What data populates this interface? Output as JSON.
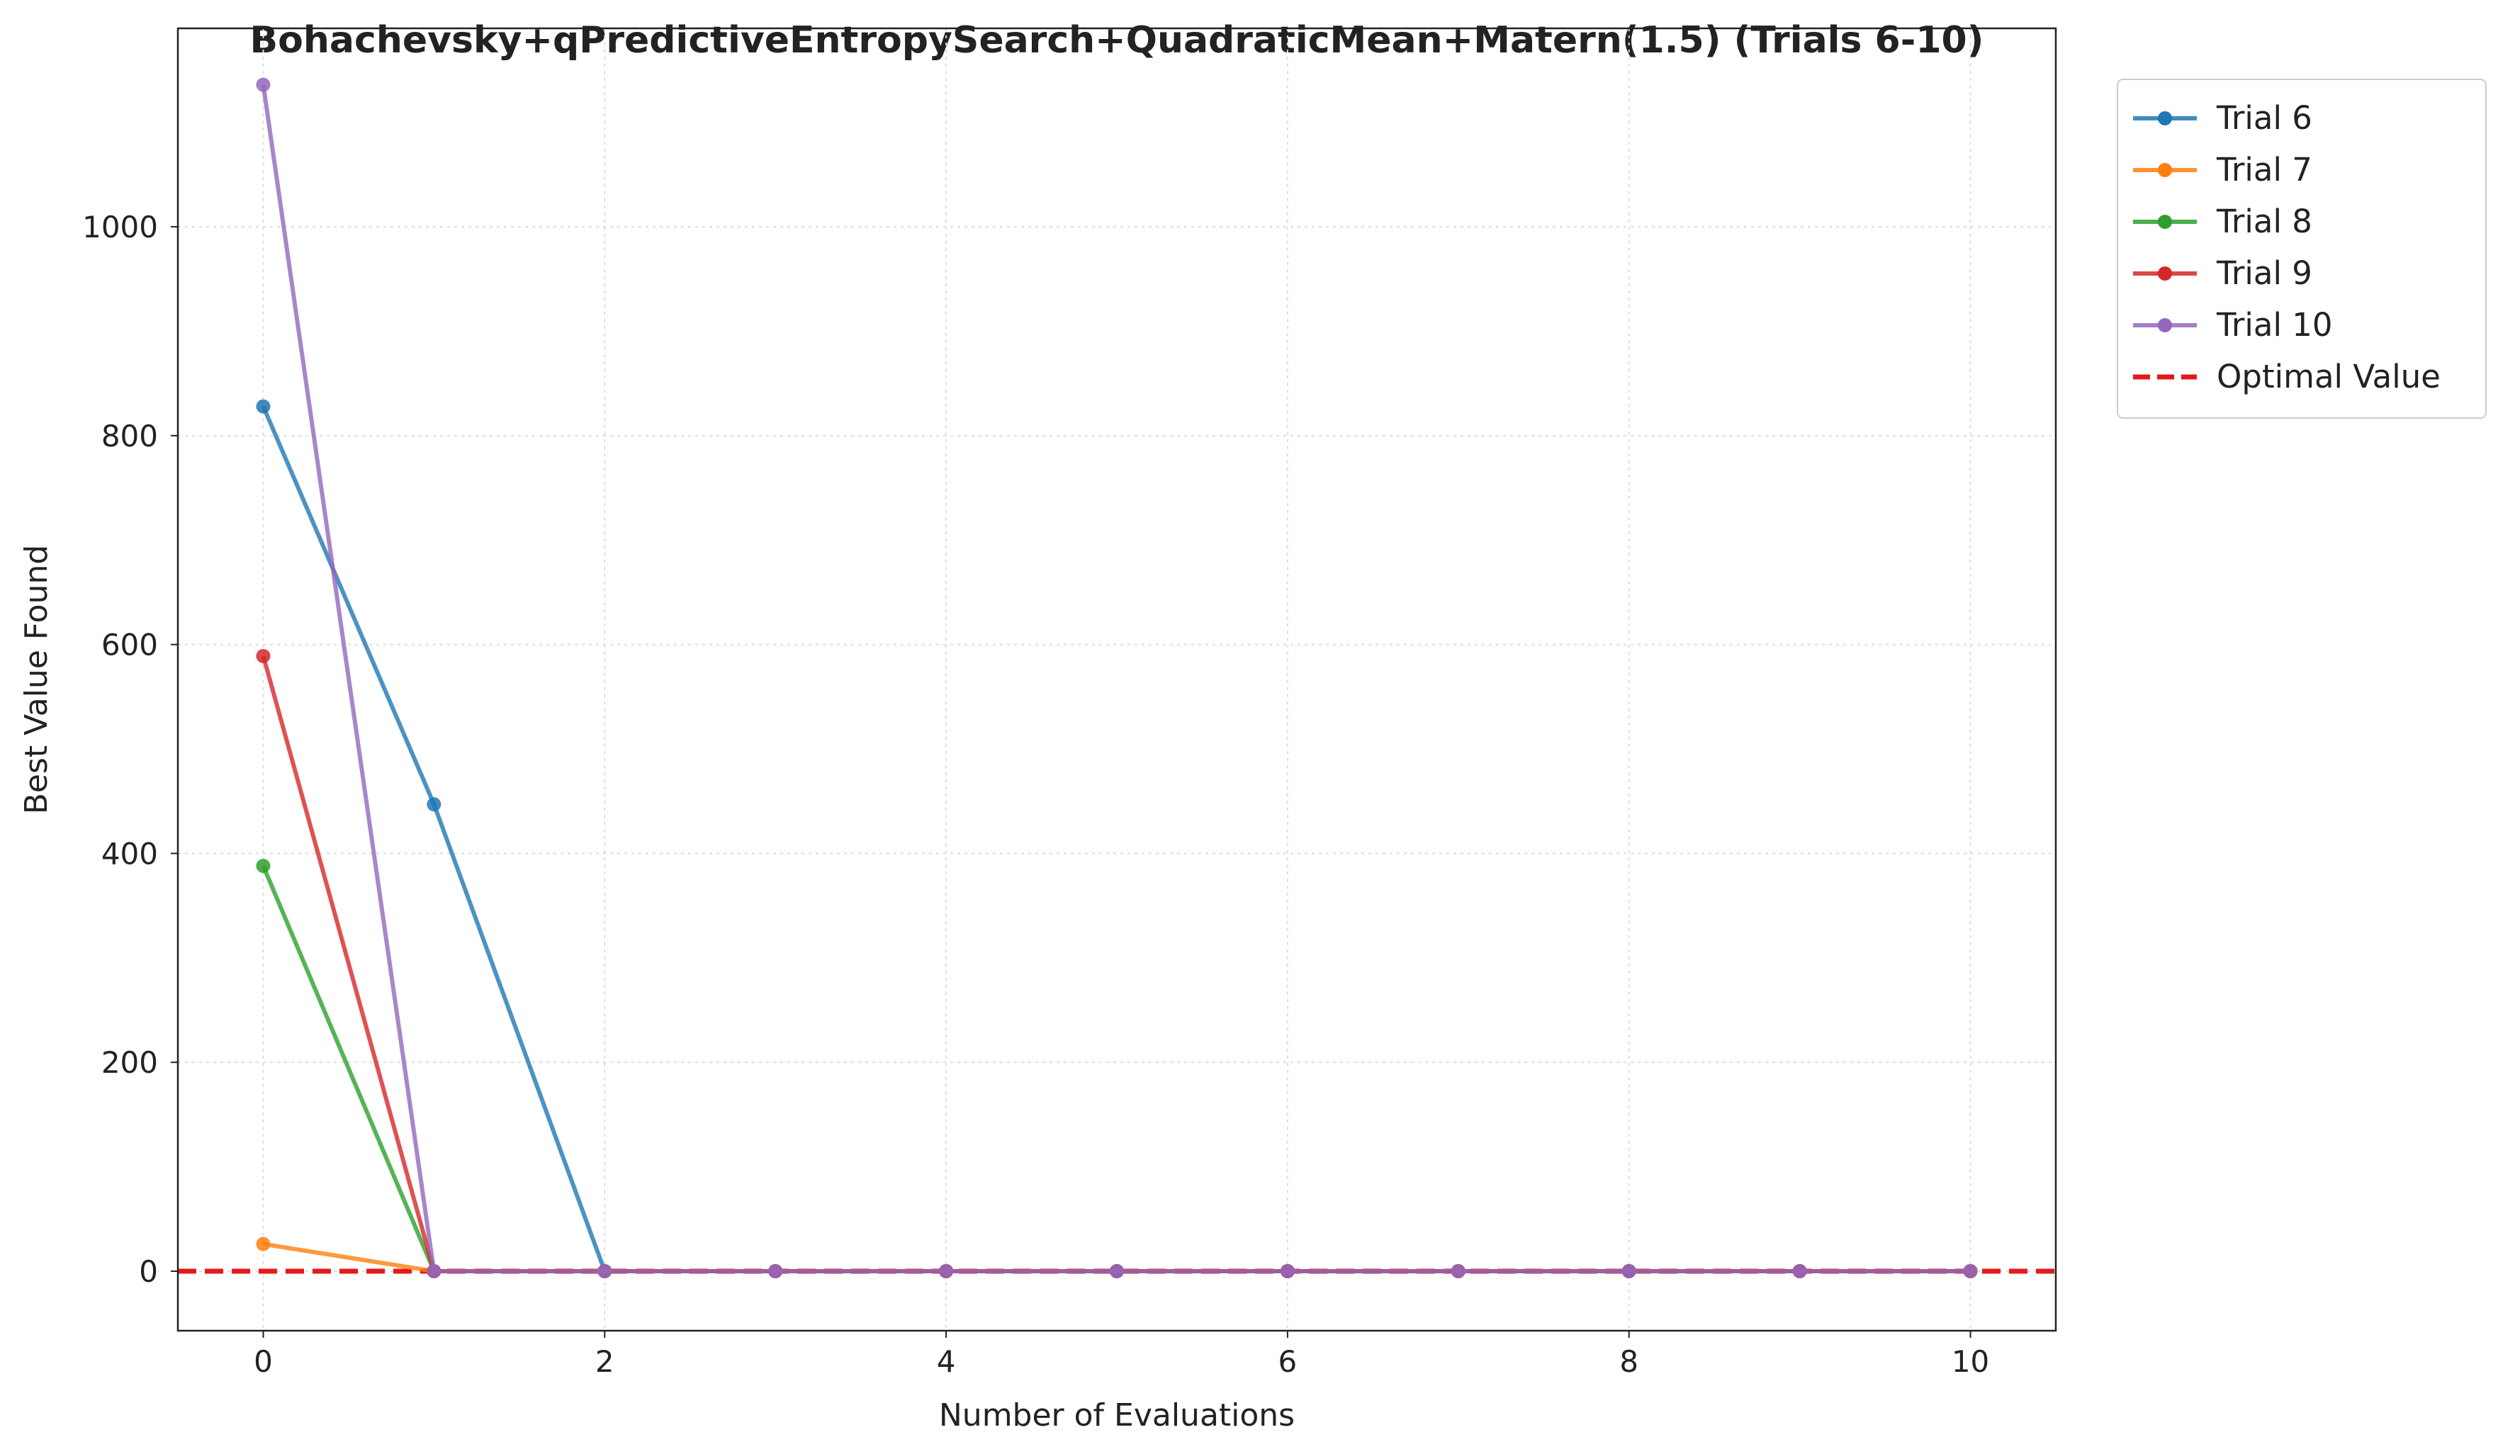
{
  "chart_data": {
    "type": "line",
    "title": "Bohachevsky+qPredictiveEntropySearch+QuadraticMean+Matern(1.5) (Trials 6-10)",
    "xlabel": "Number of Evaluations",
    "ylabel": "Best Value Found",
    "xlim": [
      -0.5,
      10.5
    ],
    "ylim": [
      -57,
      1190
    ],
    "xticks": [
      0,
      2,
      4,
      6,
      8,
      10
    ],
    "yticks": [
      0,
      200,
      400,
      600,
      800,
      1000
    ],
    "grid": true,
    "legend_position": "outside-top-right",
    "x": [
      0,
      1,
      2,
      3,
      4,
      5,
      6,
      7,
      8,
      9,
      10
    ],
    "series": [
      {
        "name": "Trial 6",
        "color": "#1f77b4",
        "values": [
          828,
          447,
          0,
          0,
          0,
          0,
          0,
          0,
          0,
          0,
          0
        ]
      },
      {
        "name": "Trial 7",
        "color": "#ff7f0e",
        "values": [
          26,
          0,
          0,
          0,
          0,
          0,
          0,
          0,
          0,
          0,
          0
        ]
      },
      {
        "name": "Trial 8",
        "color": "#2ca02c",
        "values": [
          388,
          0,
          0,
          0,
          0,
          0,
          0,
          0,
          0,
          0,
          0
        ]
      },
      {
        "name": "Trial 9",
        "color": "#d62728",
        "values": [
          589,
          0,
          0,
          0,
          0,
          0,
          0,
          0,
          0,
          0,
          0
        ]
      },
      {
        "name": "Trial 10",
        "color": "#9467bd",
        "values": [
          1136,
          0,
          0,
          0,
          0,
          0,
          0,
          0,
          0,
          0,
          0
        ]
      }
    ],
    "reference_line": {
      "name": "Optimal Value",
      "value": 0,
      "color": "#e31a1c",
      "style": "dashed"
    }
  }
}
